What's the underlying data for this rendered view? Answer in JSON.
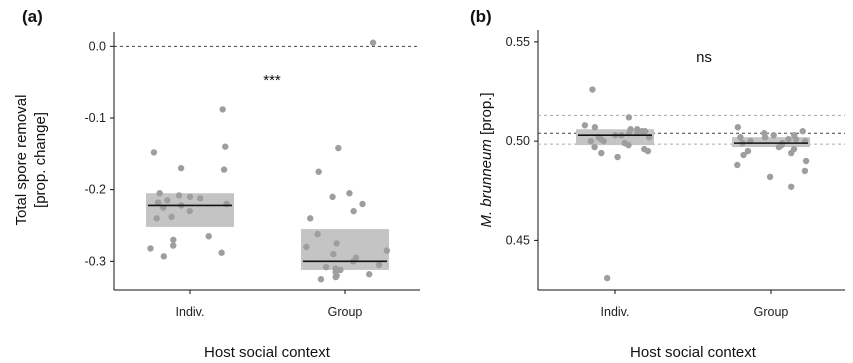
{
  "chart_data": [
    {
      "type": "scatter",
      "panel_label": "(a)",
      "xlabel": "Host social context",
      "ylabel_lines": [
        "Total spore removal",
        "[prop. change]"
      ],
      "categories": [
        "Indiv.",
        "Group"
      ],
      "ylim": [
        -0.34,
        0.02
      ],
      "yticks": [
        "-0.3",
        "-0.2",
        "-0.1",
        "0.0"
      ],
      "annotation": "***",
      "reference_lines": [
        {
          "y": 0.0,
          "style": "dashed"
        }
      ],
      "boxes": [
        {
          "category": "Indiv.",
          "median": -0.222,
          "lower": -0.252,
          "upper": -0.205
        },
        {
          "category": "Group",
          "median": -0.3,
          "lower": -0.312,
          "upper": -0.255
        }
      ],
      "points": [
        {
          "category": "Indiv.",
          "values": [
            -0.088,
            -0.14,
            -0.148,
            -0.17,
            -0.172,
            -0.205,
            -0.208,
            -0.21,
            -0.212,
            -0.215,
            -0.218,
            -0.22,
            -0.222,
            -0.225,
            -0.23,
            -0.238,
            -0.24,
            -0.265,
            -0.27,
            -0.278,
            -0.282,
            -0.288,
            -0.293
          ]
        },
        {
          "category": "Group",
          "values": [
            0.005,
            -0.142,
            -0.175,
            -0.205,
            -0.21,
            -0.22,
            -0.23,
            -0.24,
            -0.262,
            -0.275,
            -0.28,
            -0.285,
            -0.29,
            -0.295,
            -0.3,
            -0.305,
            -0.308,
            -0.31,
            -0.312,
            -0.315,
            -0.318,
            -0.32,
            -0.322,
            -0.325
          ]
        }
      ]
    },
    {
      "type": "scatter",
      "panel_label": "(b)",
      "xlabel": "Host social context",
      "ylabel_italic": "M. brunneum",
      "ylabel_rest": " [prop.]",
      "categories": [
        "Indiv.",
        "Group"
      ],
      "ylim": [
        0.425,
        0.556
      ],
      "yticks": [
        "0.45",
        "0.50",
        "0.55"
      ],
      "annotation": "ns",
      "reference_lines": [
        {
          "y": 0.513,
          "style": "dashed-light"
        },
        {
          "y": 0.504,
          "style": "dashed"
        },
        {
          "y": 0.4985,
          "style": "dashed-light"
        }
      ],
      "boxes": [
        {
          "category": "Indiv.",
          "median": 0.503,
          "lower": 0.498,
          "upper": 0.506
        },
        {
          "category": "Group",
          "median": 0.499,
          "lower": 0.497,
          "upper": 0.502
        }
      ],
      "points": [
        {
          "category": "Indiv.",
          "values": [
            0.526,
            0.512,
            0.508,
            0.507,
            0.506,
            0.506,
            0.505,
            0.505,
            0.504,
            0.504,
            0.503,
            0.503,
            0.502,
            0.502,
            0.501,
            0.5,
            0.5,
            0.499,
            0.498,
            0.497,
            0.496,
            0.495,
            0.494,
            0.492,
            0.431
          ]
        },
        {
          "category": "Group",
          "values": [
            0.507,
            0.505,
            0.504,
            0.503,
            0.503,
            0.502,
            0.502,
            0.501,
            0.501,
            0.5,
            0.5,
            0.499,
            0.499,
            0.498,
            0.497,
            0.496,
            0.495,
            0.494,
            0.493,
            0.49,
            0.488,
            0.485,
            0.482,
            0.477
          ]
        }
      ]
    }
  ],
  "colors": {
    "box": "#c4c4c4",
    "point": "#9e9e9e",
    "median": "#111111",
    "ref_dark": "#444444",
    "ref_light": "#aaaaaa"
  }
}
